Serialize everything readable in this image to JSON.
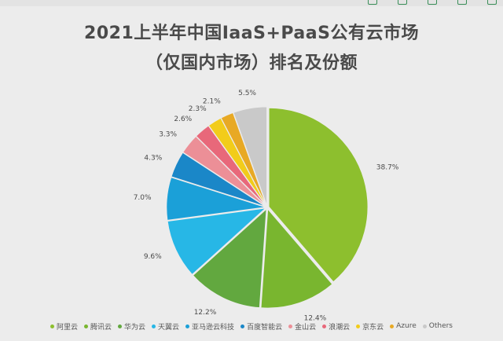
{
  "chart_data": {
    "type": "pie",
    "title_lines": [
      "2021上半年中国IaaS+PaaS公有云市场",
      "（仅国内市场）排名及份额"
    ],
    "slices": [
      {
        "name": "阿里云",
        "value": 38.7,
        "label": "38.7%",
        "color": "#8dbf2e"
      },
      {
        "name": "腾讯云",
        "value": 12.4,
        "label": "12.4%",
        "color": "#79b62f"
      },
      {
        "name": "华为云",
        "value": 12.2,
        "label": "12.2%",
        "color": "#62a83f"
      },
      {
        "name": "天翼云",
        "value": 9.6,
        "label": "9.6%",
        "color": "#27b7e6"
      },
      {
        "name": "亚马逊云科技",
        "value": 7.0,
        "label": "7.0%",
        "color": "#1ba0d8"
      },
      {
        "name": "百度智能云",
        "value": 4.3,
        "label": "4.3%",
        "color": "#1a87c8"
      },
      {
        "name": "金山云",
        "value": 3.3,
        "label": "3.3%",
        "color": "#ec8f97"
      },
      {
        "name": "浪潮云",
        "value": 2.6,
        "label": "2.6%",
        "color": "#e8687a"
      },
      {
        "name": "京东云",
        "value": 2.3,
        "label": "2.3%",
        "color": "#f2cc1a"
      },
      {
        "name": "Azure",
        "value": 2.1,
        "label": "2.1%",
        "color": "#e8a924"
      },
      {
        "name": "Others",
        "value": 5.5,
        "label": "5.5%",
        "color": "#c9c9c9"
      }
    ],
    "legend_placement": "bottom"
  }
}
